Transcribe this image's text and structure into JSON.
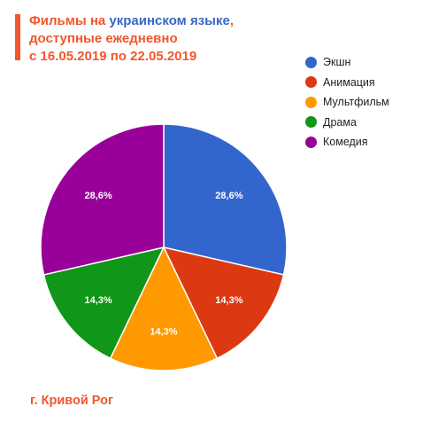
{
  "title": {
    "part1": "Фильмы на ",
    "highlight": "украинском языке",
    "part2": ",",
    "line2": "доступные ежедневно",
    "line3": "с 16.05.2019 по 22.05.2019"
  },
  "footer": "г. Кривой Рог",
  "colors": {
    "accent": "#f0572d",
    "highlight": "#3a67c4"
  },
  "chart_data": {
    "type": "pie",
    "title": "Фильмы на украинском языке, доступные ежедневно с 16.05.2019 по 22.05.2019",
    "legend_position": "top-right",
    "slices": [
      {
        "label": "Экшн",
        "value": 28.6,
        "display": "28,6%",
        "color": "#3366cc"
      },
      {
        "label": "Анимация",
        "value": 14.3,
        "display": "14,3%",
        "color": "#dc3912"
      },
      {
        "label": "Мультфильм",
        "value": 14.3,
        "display": "14,3%",
        "color": "#ff9900"
      },
      {
        "label": "Драма",
        "value": 14.3,
        "display": "14,3%",
        "color": "#109618"
      },
      {
        "label": "Комедия",
        "value": 28.6,
        "display": "28,6%",
        "color": "#990099"
      }
    ]
  }
}
